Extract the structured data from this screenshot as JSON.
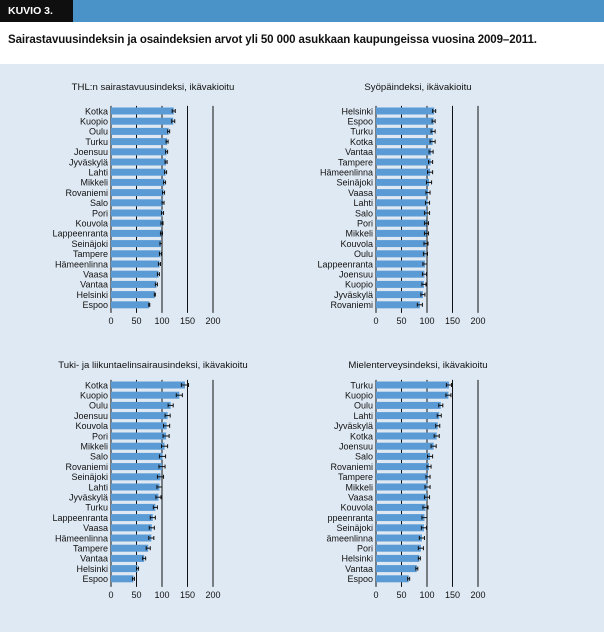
{
  "header": {
    "label": "KUVIO 3.",
    "title": "Sairastavuusindeksin ja osaindeksien arvot yli 50 000 asukkaan kaupungeissa vuosina 2009–2011."
  },
  "colors": {
    "bar": "#5b9bd5",
    "header_bar": "#4a93c9",
    "panel_bg": "#dfe9f3",
    "error_bar": "#111111"
  },
  "chart_data": [
    {
      "type": "bar",
      "orientation": "horizontal",
      "title": "THL:n sairastavuusindeksi, ikävakioitu",
      "categories": [
        "Kotka",
        "Kuopio",
        "Oulu",
        "Turku",
        "Joensuu",
        "Jyväskylä",
        "Lahti",
        "Mikkeli",
        "Rovaniemi",
        "Salo",
        "Pori",
        "Kouvola",
        "Lappeenranta",
        "Seinäjoki",
        "Tampere",
        "Hämeenlinna",
        "Vaasa",
        "Vantaa",
        "Helsinki",
        "Espoo"
      ],
      "values": [
        123,
        122,
        113,
        110,
        109,
        108,
        107,
        105,
        103,
        102,
        101,
        100,
        99,
        98,
        97,
        95,
        93,
        89,
        86,
        75
      ],
      "errors": [
        3,
        3,
        2,
        2,
        2,
        2,
        2,
        2,
        2,
        2,
        2,
        2,
        2,
        2,
        2,
        2,
        2,
        2,
        1,
        1
      ],
      "xticks": [
        0,
        50,
        100,
        150,
        200
      ],
      "xlim": [
        0,
        200
      ],
      "grid": "vertical at 50, 100, 150, 200"
    },
    {
      "type": "bar",
      "orientation": "horizontal",
      "title": "Syöpäindeksi, ikävakioitu",
      "categories": [
        "Helsinki",
        "Espoo",
        "Turku",
        "Kotka",
        "Vantaa",
        "Tampere",
        "Hämeenlinna",
        "Seinäjoki",
        "Vaasa",
        "Lahti",
        "Salo",
        "Pori",
        "Mikkeli",
        "Kouvola",
        "Oulu",
        "Lappeenranta",
        "Joensuu",
        "Kuopio",
        "Jyväskylä",
        "Rovaniemi"
      ],
      "values": [
        114,
        113,
        112,
        111,
        108,
        107,
        106,
        104,
        102,
        101,
        100,
        99,
        99,
        98,
        97,
        96,
        95,
        94,
        92,
        86
      ],
      "errors": [
        3,
        3,
        4,
        5,
        4,
        4,
        5,
        5,
        4,
        4,
        5,
        4,
        4,
        4,
        4,
        4,
        4,
        4,
        4,
        5
      ],
      "xticks": [
        0,
        50,
        100,
        150,
        200
      ],
      "xlim": [
        0,
        200
      ],
      "grid": "vertical at 50, 100, 150, 200"
    },
    {
      "type": "bar",
      "orientation": "horizontal",
      "title": "Tuki- ja liikuntaelinsairausindeksi, ikävakioitu",
      "categories": [
        "Kotka",
        "Kuopio",
        "Oulu",
        "Joensuu",
        "Kouvola",
        "Pori",
        "Mikkeli",
        "Salo",
        "Rovaniemi",
        "Seinäjoki",
        "Lahti",
        "Jyväskylä",
        "Turku",
        "Lappeenranta",
        "Vaasa",
        "Hämeenlinna",
        "Tampere",
        "Vantaa",
        "Helsinki",
        "Espoo"
      ],
      "values": [
        145,
        134,
        117,
        111,
        109,
        108,
        105,
        101,
        100,
        97,
        95,
        93,
        87,
        82,
        80,
        79,
        73,
        65,
        52,
        44
      ],
      "errors": [
        7,
        6,
        5,
        5,
        6,
        6,
        6,
        6,
        6,
        6,
        5,
        5,
        4,
        5,
        5,
        5,
        4,
        3,
        2,
        2
      ],
      "xticks": [
        0,
        50,
        100,
        150,
        200
      ],
      "xlim": [
        0,
        200
      ],
      "grid": "vertical at 50, 100, 150, 200"
    },
    {
      "type": "bar",
      "orientation": "horizontal",
      "title": "Mielenterveysindeksi, ikävakioitu",
      "categories": [
        "Turku",
        "Kuopio",
        "Oulu",
        "Lahti",
        "Jyväskylä",
        "Kotka",
        "Joensuu",
        "Salo",
        "Rovaniemi",
        "Tampere",
        "Mikkeli",
        "Vaasa",
        "Kouvola",
        "ppeenranta",
        "Seinäjoki",
        "ämeenlinna",
        "Pori",
        "Helsinki",
        "Vantaa",
        "Espoo"
      ],
      "values": [
        143,
        142,
        127,
        124,
        121,
        119,
        113,
        106,
        104,
        102,
        101,
        100,
        97,
        95,
        94,
        90,
        88,
        85,
        80,
        64
      ],
      "errors": [
        5,
        5,
        4,
        4,
        4,
        5,
        5,
        5,
        4,
        4,
        5,
        5,
        5,
        5,
        5,
        5,
        5,
        2,
        2,
        2
      ],
      "xticks": [
        0,
        50,
        100,
        150,
        200
      ],
      "xlim": [
        0,
        200
      ],
      "grid": "vertical at 50, 100, 150, 200"
    }
  ]
}
